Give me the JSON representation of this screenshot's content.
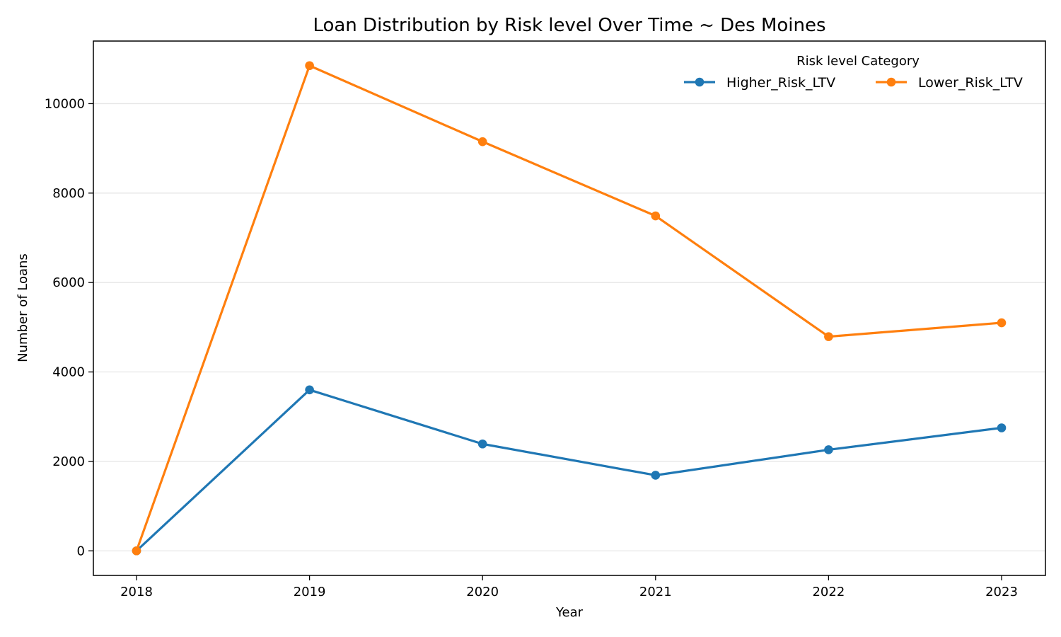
{
  "chart_data": {
    "type": "line",
    "title": "Loan Distribution by Risk level Over Time ~ Des Moines",
    "xlabel": "Year",
    "ylabel": "Number of Loans",
    "categories": [
      "2018",
      "2019",
      "2020",
      "2021",
      "2022",
      "2023"
    ],
    "ylim": [
      -550,
      11400
    ],
    "yticks": [
      0,
      2000,
      4000,
      6000,
      8000,
      10000
    ],
    "grid": "horizontal",
    "legend": {
      "title": "Risk level Category",
      "placement": "top-right"
    },
    "series": [
      {
        "name": "Higher_Risk_LTV",
        "color": "#1f77b4",
        "values": [
          0,
          3600,
          2390,
          1690,
          2260,
          2750
        ]
      },
      {
        "name": "Lower_Risk_LTV",
        "color": "#ff7f0e",
        "values": [
          0,
          10850,
          9150,
          7490,
          4790,
          5100
        ]
      }
    ]
  }
}
